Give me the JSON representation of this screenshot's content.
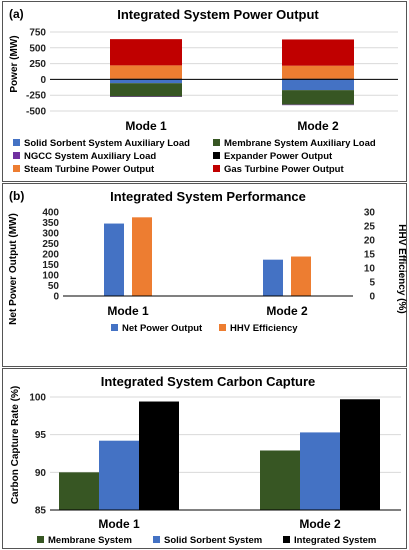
{
  "chart_data": [
    {
      "panel_label": "(a)",
      "type": "bar",
      "stacked": true,
      "title": "Integrated System Power Output",
      "ylabel": "Power (MW)",
      "xlabel": "",
      "ylim": [
        -500,
        750
      ],
      "yticks": [
        "750",
        "500",
        "250",
        "0",
        "-250",
        "-500"
      ],
      "categories": [
        "Mode 1",
        "Mode 2"
      ],
      "series": [
        {
          "name": "Solid Sorbent System Auxiliary Load",
          "color": "#4472C4",
          "values": [
            -60,
            -170
          ]
        },
        {
          "name": "Membrane System Auxiliary Load",
          "color": "#375623",
          "values": [
            -210,
            -230
          ]
        },
        {
          "name": "NGCC System Auxiliary Load",
          "color": "#7030A0",
          "values": [
            -8,
            -8
          ]
        },
        {
          "name": "Expander Power Output",
          "color": "#000000",
          "values": [
            12,
            12
          ]
        },
        {
          "name": "Steam Turbine Power Output",
          "color": "#ED7D31",
          "values": [
            210,
            205
          ]
        },
        {
          "name": "Gas Turbine Power Output",
          "color": "#C00000",
          "values": [
            415,
            415
          ]
        }
      ],
      "legend_position": "bottom"
    },
    {
      "panel_label": "(b)",
      "type": "bar",
      "title": "Integrated System Performance",
      "ylabel": "Net Power Output (MW)",
      "ylabel_right": "HHV Efficiency (%)",
      "ylim": [
        0,
        400
      ],
      "ylim_right": [
        0,
        30
      ],
      "yticks": [
        "400",
        "350",
        "300",
        "250",
        "200",
        "150",
        "100",
        "50",
        "0"
      ],
      "yticks_right": [
        "30",
        "25",
        "20",
        "15",
        "10",
        "5",
        "0"
      ],
      "categories": [
        "Mode 1",
        "Mode 2"
      ],
      "series": [
        {
          "name": "Net Power Output",
          "color": "#4472C4",
          "axis": "left",
          "values": [
            345,
            173
          ]
        },
        {
          "name": "HHV Efficiency",
          "color": "#ED7D31",
          "axis": "right",
          "values": [
            28.1,
            14.1
          ]
        }
      ],
      "legend_position": "bottom"
    },
    {
      "type": "bar",
      "title": "Integrated System Carbon Capture",
      "ylabel": "Carbon Capture Rate (%)",
      "ylim": [
        85,
        100
      ],
      "yticks": [
        "100",
        "95",
        "90",
        "85"
      ],
      "categories": [
        "Mode 1",
        "Mode 2"
      ],
      "series": [
        {
          "name": "Membrane System",
          "color": "#375623",
          "values": [
            90.0,
            92.9
          ]
        },
        {
          "name": "Solid Sorbent System",
          "color": "#4472C4",
          "values": [
            94.2,
            95.3
          ]
        },
        {
          "name": "Integrated System",
          "color": "#000000",
          "values": [
            99.4,
            99.7
          ]
        }
      ],
      "legend_position": "bottom"
    }
  ]
}
